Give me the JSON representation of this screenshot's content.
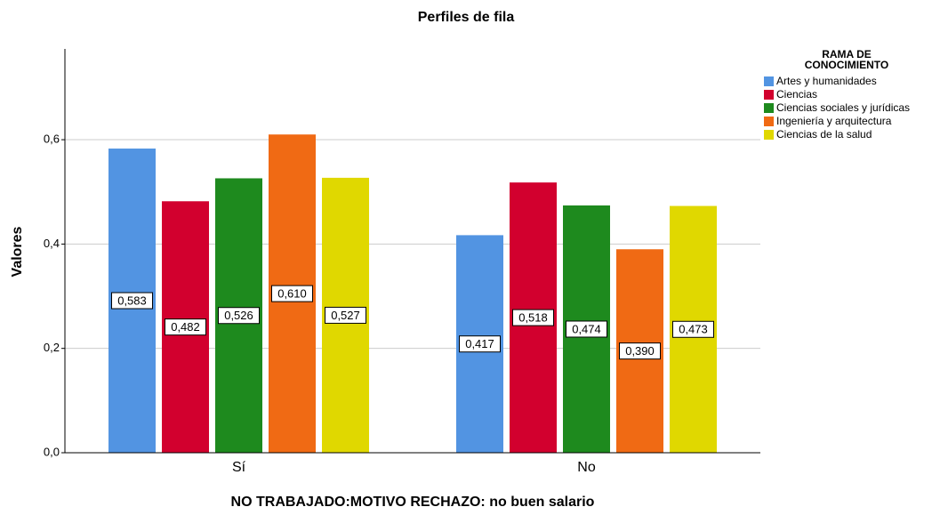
{
  "chart_data": {
    "type": "bar",
    "title": "Perfiles de fila",
    "x_label": "NO TRABAJADO:MOTIVO RECHAZO: no buen salario",
    "y_label": "Valores",
    "legend_title": [
      "RAMA DE",
      "CONOCIMIENTO"
    ],
    "legend_position": "right",
    "categories": [
      "Sí",
      "No"
    ],
    "series": [
      {
        "name": "Artes y humanidades",
        "color": "#5294e2",
        "values": [
          0.583,
          0.417
        ],
        "value_labels": [
          "0,583",
          "0,417"
        ]
      },
      {
        "name": "Ciencias",
        "color": "#d2002e",
        "values": [
          0.482,
          0.518
        ],
        "value_labels": [
          "0,482",
          "0,518"
        ]
      },
      {
        "name": "Ciencias sociales y jurídicas",
        "color": "#1e8a1e",
        "values": [
          0.526,
          0.474
        ],
        "value_labels": [
          "0,526",
          "0,474"
        ]
      },
      {
        "name": "Ingeniería y arquitectura",
        "color": "#f06a14",
        "values": [
          0.61,
          0.39
        ],
        "value_labels": [
          "0,610",
          "0,390"
        ]
      },
      {
        "name": "Ciencias de la salud",
        "color": "#e0d800",
        "values": [
          0.527,
          0.473
        ],
        "value_labels": [
          "0,527",
          "0,473"
        ]
      }
    ],
    "ylim": [
      0,
      0.774
    ],
    "yticks": [
      {
        "value": 0,
        "label": "0,0"
      },
      {
        "value": 0.2,
        "label": "0,2"
      },
      {
        "value": 0.4,
        "label": "0,4"
      },
      {
        "value": 0.6,
        "label": "0,6"
      }
    ],
    "grid": true
  }
}
